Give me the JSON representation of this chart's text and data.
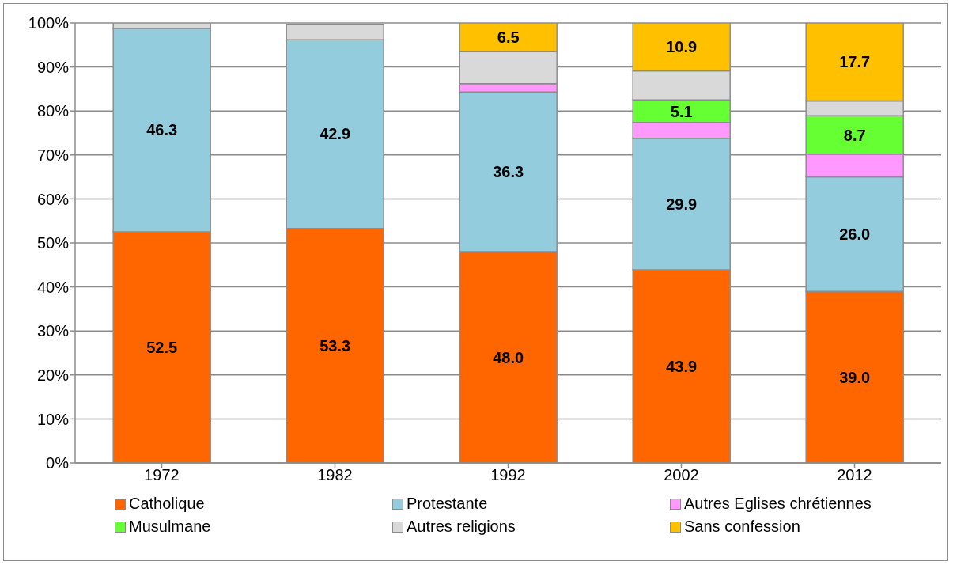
{
  "chart_data": {
    "type": "bar",
    "stacked": true,
    "categories": [
      "1972",
      "1982",
      "1992",
      "2002",
      "2012"
    ],
    "series": [
      {
        "name": "Catholique",
        "color": "#ff6600",
        "values": [
          52.5,
          53.3,
          48.0,
          43.9,
          39.0
        ],
        "value_labels": [
          "52.5",
          "53.3",
          "48.0",
          "43.9",
          "39.0"
        ]
      },
      {
        "name": "Protestante",
        "color": "#93cddd",
        "values": [
          46.3,
          42.9,
          36.3,
          29.9,
          26.0
        ],
        "value_labels": [
          "46.3",
          "42.9",
          "36.3",
          "29.9",
          "26.0"
        ]
      },
      {
        "name": "Autres Eglises chrétiennes",
        "color": "#ff99ff",
        "values": [
          0,
          0,
          1.9,
          3.6,
          5.2
        ]
      },
      {
        "name": "Musulmane",
        "color": "#66ff33",
        "values": [
          0,
          0,
          0,
          5.1,
          8.7
        ],
        "value_labels": [
          null,
          null,
          null,
          "5.1",
          "8.7"
        ]
      },
      {
        "name": "Autres religions",
        "color": "#d9d9d9",
        "values": [
          1.2,
          3.5,
          7.3,
          6.6,
          3.4
        ]
      },
      {
        "name": "Sans confession",
        "color": "#ffc000",
        "values": [
          0,
          0,
          6.5,
          10.9,
          17.7
        ],
        "value_labels": [
          null,
          null,
          "6.5",
          "10.9",
          "17.7"
        ]
      }
    ],
    "ylim": [
      0,
      100
    ],
    "yticks": [
      {
        "value": 0,
        "label": "0%"
      },
      {
        "value": 10,
        "label": "10%"
      },
      {
        "value": 20,
        "label": "20%"
      },
      {
        "value": 30,
        "label": "30%"
      },
      {
        "value": 40,
        "label": "40%"
      },
      {
        "value": 50,
        "label": "50%"
      },
      {
        "value": 60,
        "label": "60%"
      },
      {
        "value": 70,
        "label": "70%"
      },
      {
        "value": 80,
        "label": "80%"
      },
      {
        "value": 90,
        "label": "90%"
      },
      {
        "value": 100,
        "label": "100%"
      }
    ],
    "grid": "y",
    "legend": "bottom"
  }
}
